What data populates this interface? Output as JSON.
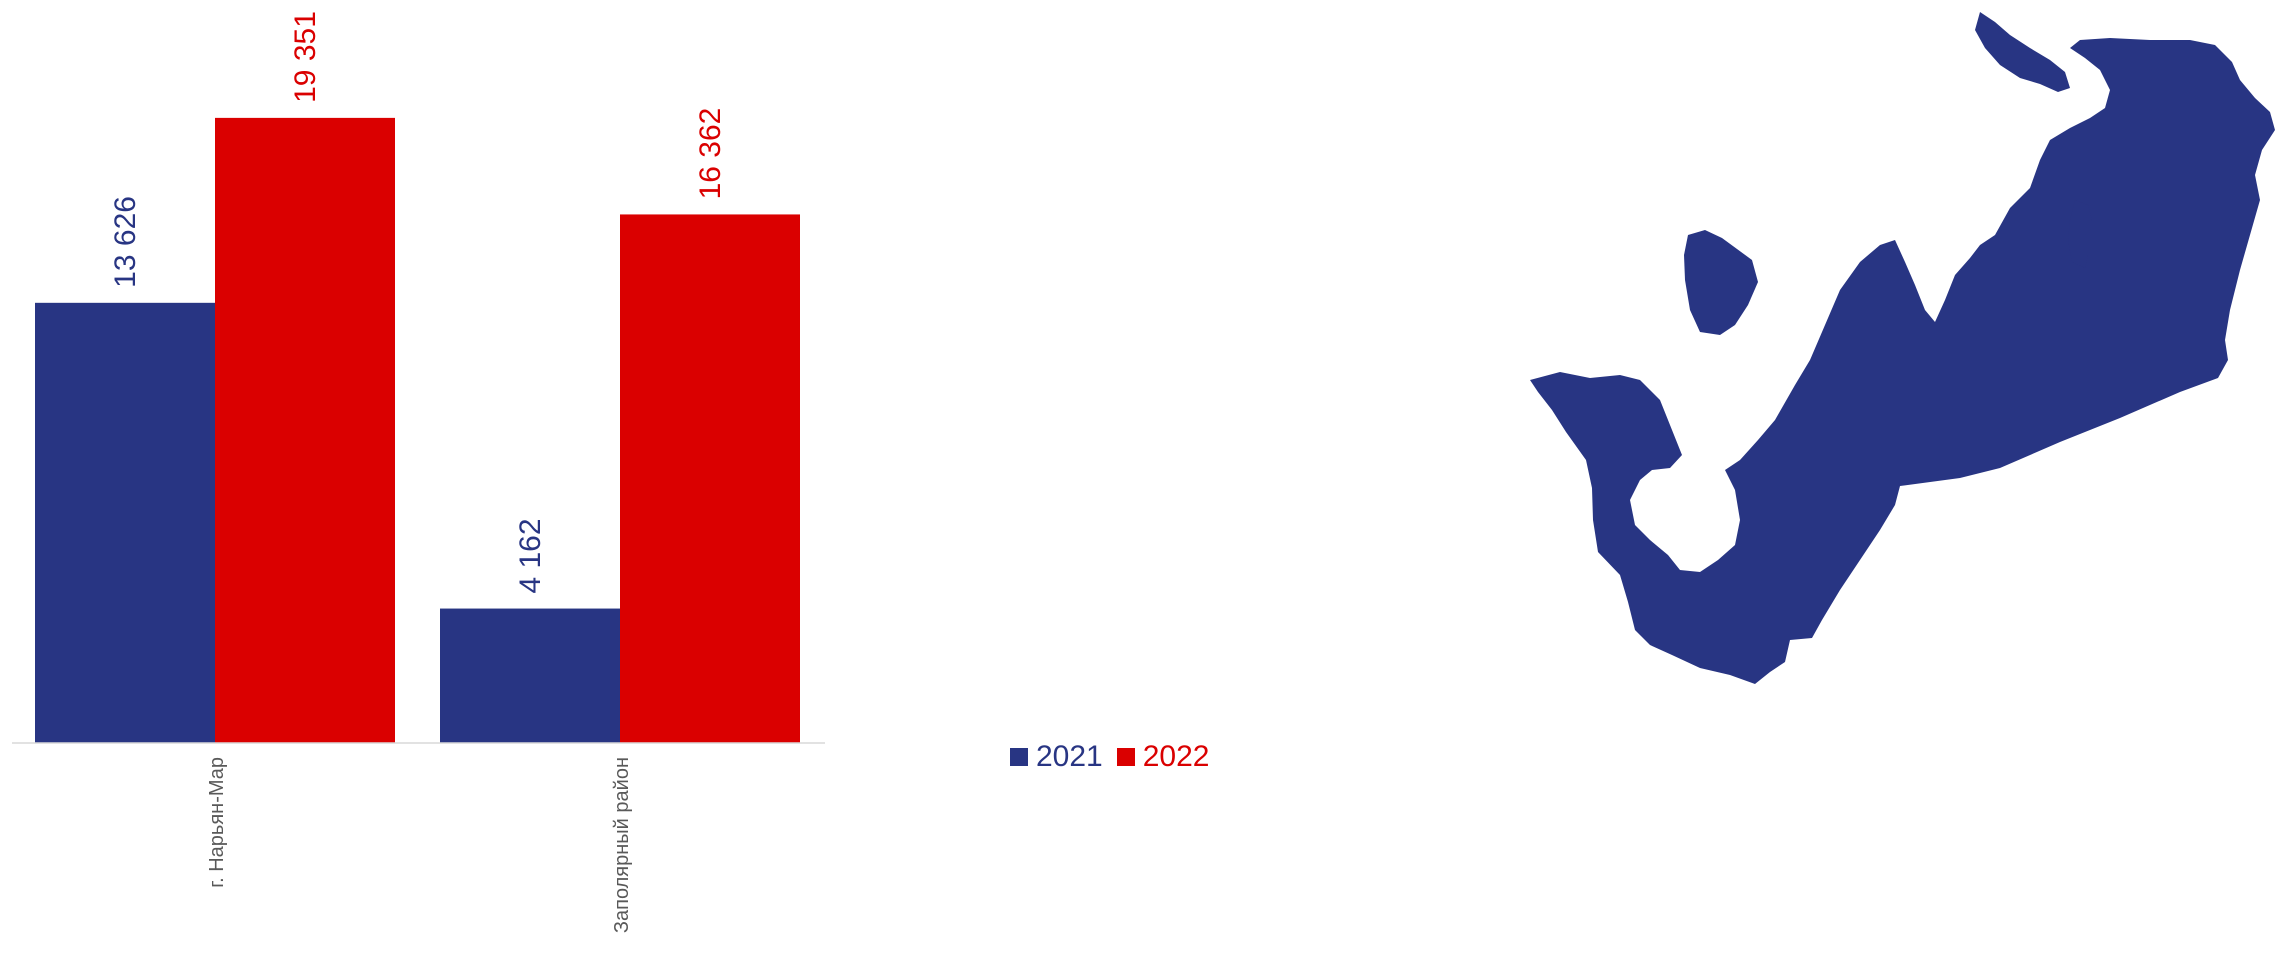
{
  "colors": {
    "series_2021": "#283583",
    "series_2022": "#DA0000",
    "axis": "#d9d9d9",
    "map_fill": "#283583"
  },
  "chart_data": {
    "type": "bar",
    "categories": [
      "г. Нарьян-Мар",
      "Заполярный район"
    ],
    "series": [
      {
        "name": "2021",
        "values": [
          13626,
          4162
        ],
        "labels": [
          "13 626",
          "4 162"
        ]
      },
      {
        "name": "2022",
        "values": [
          19351,
          16362
        ],
        "labels": [
          "19 351",
          "16 362"
        ]
      }
    ],
    "ylim": [
      0,
      23000
    ],
    "grid": false,
    "legend_position": "bottom-right",
    "value_label_orientation": "vertical"
  },
  "legend": {
    "items": [
      "2021",
      "2022"
    ]
  },
  "map": {
    "icon": "region-map-icon"
  }
}
